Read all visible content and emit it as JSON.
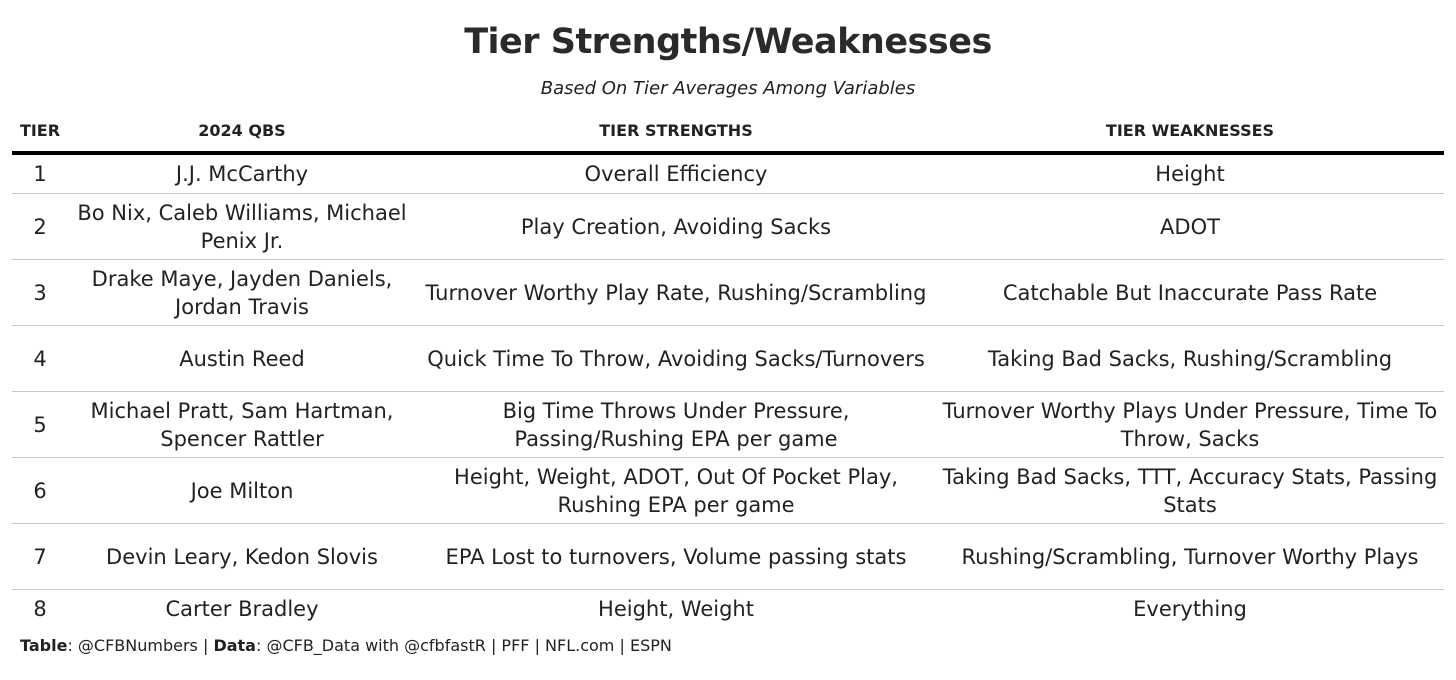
{
  "title": "Tier Strengths/Weaknesses",
  "subtitle": "Based On Tier Averages Among Variables",
  "headers": {
    "tier": "TIER",
    "qbs": "2024 QBS",
    "strengths": "TIER STRENGTHS",
    "weaknesses": "TIER WEAKNESSES"
  },
  "rows": [
    {
      "tier": "1",
      "qbs": "J.J. McCarthy",
      "strengths": "Overall Efficiency",
      "weaknesses": "Height"
    },
    {
      "tier": "2",
      "qbs": "Bo Nix, Caleb Williams, Michael Penix Jr.",
      "strengths": "Play Creation, Avoiding Sacks",
      "weaknesses": "ADOT"
    },
    {
      "tier": "3",
      "qbs": "Drake Maye, Jayden Daniels, Jordan Travis",
      "strengths": "Turnover Worthy Play Rate, Rushing/Scrambling",
      "weaknesses": "Catchable But Inaccurate Pass Rate"
    },
    {
      "tier": "4",
      "qbs": "Austin Reed",
      "strengths": "Quick Time To Throw, Avoiding Sacks/Turnovers",
      "weaknesses": "Taking Bad Sacks, Rushing/Scrambling"
    },
    {
      "tier": "5",
      "qbs": "Michael Pratt, Sam Hartman, Spencer Rattler",
      "strengths": "Big Time Throws Under Pressure, Passing/Rushing EPA per game",
      "weaknesses": "Turnover Worthy Plays Under Pressure, Time To Throw, Sacks"
    },
    {
      "tier": "6",
      "qbs": "Joe Milton",
      "strengths": "Height, Weight, ADOT, Out Of Pocket Play, Rushing EPA per game",
      "weaknesses": "Taking Bad Sacks, TTT, Accuracy Stats, Passing Stats"
    },
    {
      "tier": "7",
      "qbs": "Devin Leary, Kedon Slovis",
      "strengths": "EPA Lost to turnovers, Volume passing stats",
      "weaknesses": "Rushing/Scrambling, Turnover Worthy Plays"
    },
    {
      "tier": "8",
      "qbs": "Carter Bradley",
      "strengths": "Height, Weight",
      "weaknesses": "Everything"
    }
  ],
  "footer": {
    "table_label": "Table",
    "table_value": ": @CFBNumbers | ",
    "data_label": "Data",
    "data_value": ": @CFB_Data with @cfbfastR | PFF | NFL.com | ESPN"
  }
}
